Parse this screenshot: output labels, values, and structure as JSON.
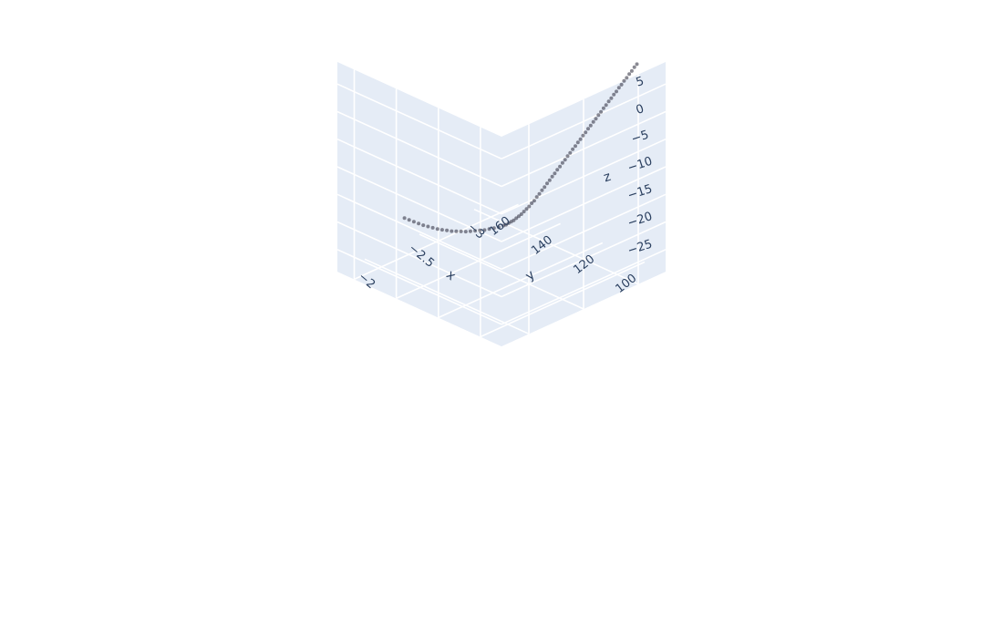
{
  "chart_data": {
    "type": "scatter",
    "mode": "markers",
    "dimensions": 3,
    "axes": {
      "x": {
        "title": "x",
        "range": [
          -1.75,
          -3.25
        ],
        "ticks": [
          "−2",
          "−2.5",
          "−3"
        ],
        "tick_values": [
          -2,
          -2.5,
          -3
        ]
      },
      "y": {
        "title": "y",
        "range": [
          90,
          168
        ],
        "ticks": [
          "100",
          "120",
          "140",
          "160"
        ],
        "tick_values": [
          100,
          120,
          140,
          160
        ]
      },
      "z": {
        "title": "z",
        "range": [
          -29,
          9
        ],
        "ticks": [
          "5",
          "0",
          "−5",
          "−10",
          "−15",
          "−20",
          "−25"
        ],
        "tick_values": [
          5,
          0,
          -5,
          -10,
          -15,
          -20,
          -25
        ]
      }
    },
    "grid": true,
    "background_color": "#e5ecf6",
    "grid_color": "#ffffff",
    "marker_color": "#2a2a3a",
    "series": [
      {
        "x": [
          -3.18,
          -3.17,
          -3.16,
          -3.15,
          -3.14,
          -3.13,
          -3.12,
          -3.11,
          -3.1,
          -3.09,
          -3.08,
          -3.07,
          -3.06,
          -3.05,
          -3.04,
          -3.03,
          -3.02,
          -3.01,
          -3.0,
          -2.99,
          -2.98,
          -2.97,
          -2.96,
          -2.95,
          -2.94,
          -2.93,
          -2.92,
          -2.91,
          -2.9,
          -2.89,
          -2.88,
          -2.87,
          -2.86,
          -2.85,
          -2.84,
          -2.83,
          -2.82,
          -2.81,
          -2.8,
          -2.79,
          -2.78,
          -2.77,
          -2.76,
          -2.75,
          -2.74,
          -2.73,
          -2.72,
          -2.71,
          -2.7,
          -2.69,
          -2.68,
          -2.67,
          -2.66,
          -2.64,
          -2.62,
          -2.6,
          -2.58,
          -2.56,
          -2.54,
          -2.52,
          -2.5,
          -2.48,
          -2.46,
          -2.44,
          -2.42,
          -2.4,
          -2.38,
          -2.36,
          -2.34,
          -2.32,
          -2.3,
          -2.28,
          -2.26,
          -2.24
        ],
        "y": [
          100,
          100.7,
          101.4,
          102.1,
          102.8,
          103.5,
          104.2,
          104.9,
          105.6,
          106.3,
          107.0,
          107.7,
          108.4,
          109.1,
          109.8,
          110.5,
          111.2,
          111.9,
          112.6,
          113.3,
          114.0,
          114.7,
          115.4,
          116.1,
          116.8,
          117.5,
          118.2,
          118.9,
          119.6,
          120.3,
          121.0,
          121.7,
          122.4,
          123.1,
          123.8,
          124.5,
          125.2,
          125.9,
          126.6,
          127.3,
          128.0,
          128.7,
          129.4,
          130.1,
          130.8,
          131.5,
          132.2,
          132.9,
          133.6,
          134.3,
          135.0,
          135.7,
          136.4,
          137.6,
          138.8,
          140.0,
          141.2,
          142.4,
          143.6,
          144.8,
          146.0,
          147.2,
          148.4,
          149.6,
          150.8,
          152.0,
          153.2,
          154.4,
          155.6,
          156.8,
          158.0,
          159.2,
          160.4,
          161.6
        ],
        "z": [
          7.5,
          6.9,
          6.2,
          5.6,
          4.9,
          4.3,
          3.6,
          3.0,
          2.3,
          1.7,
          1.0,
          0.4,
          -0.3,
          -0.9,
          -1.6,
          -2.2,
          -2.9,
          -3.5,
          -4.2,
          -4.8,
          -5.5,
          -6.1,
          -6.8,
          -7.4,
          -8.1,
          -8.7,
          -9.4,
          -10.0,
          -10.7,
          -11.3,
          -12.0,
          -12.6,
          -13.3,
          -13.9,
          -14.6,
          -15.2,
          -15.9,
          -16.5,
          -17.2,
          -17.8,
          -18.5,
          -19.0,
          -19.6,
          -20.1,
          -20.6,
          -21.1,
          -21.5,
          -21.9,
          -22.3,
          -22.6,
          -22.9,
          -23.2,
          -23.4,
          -23.7,
          -23.9,
          -24.1,
          -24.3,
          -24.4,
          -24.5,
          -24.6,
          -24.7,
          -24.7,
          -24.7,
          -24.7,
          -24.6,
          -24.5,
          -24.4,
          -24.2,
          -24.0,
          -23.8,
          -23.5,
          -23.2,
          -22.9,
          -22.6
        ]
      }
    ]
  }
}
